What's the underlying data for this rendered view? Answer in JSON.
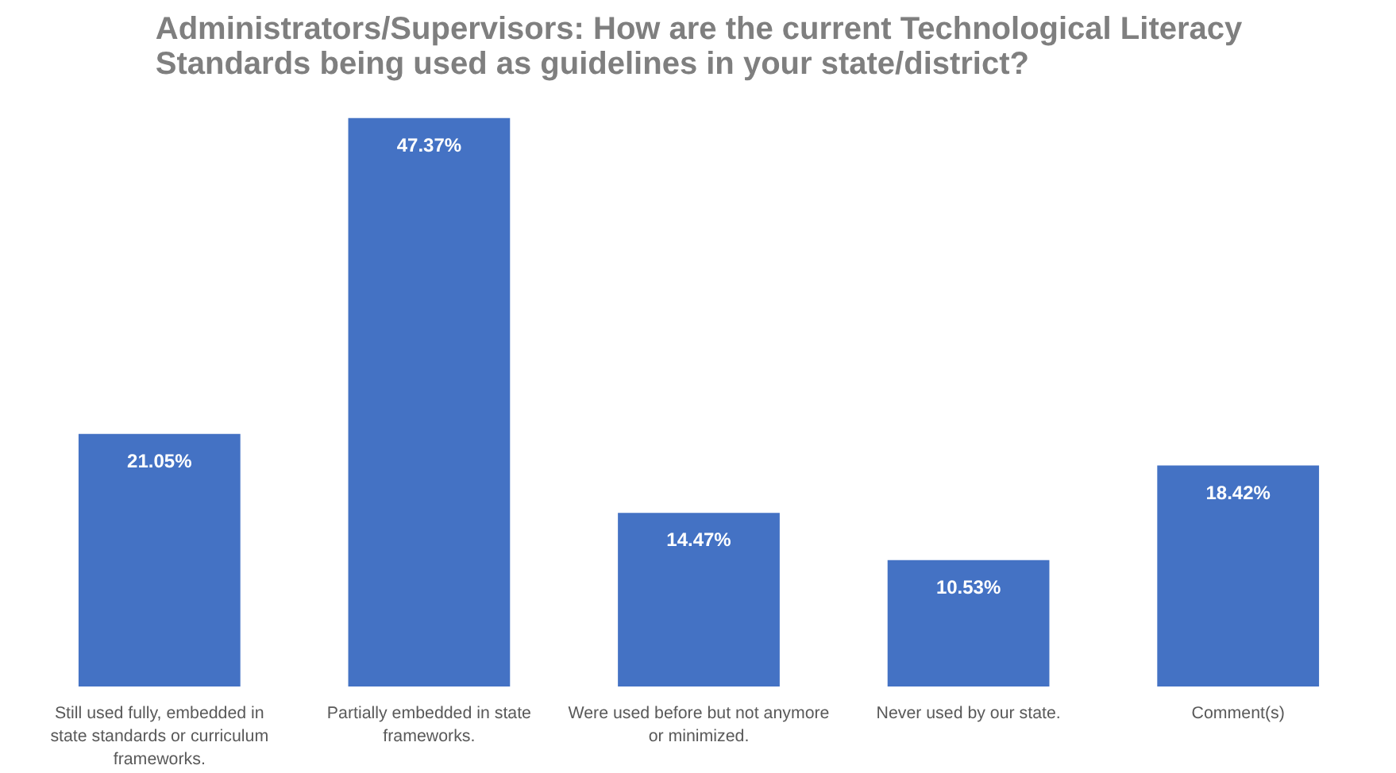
{
  "chart_data": {
    "type": "bar",
    "title": "Administrators/Supervisors: How are the current Technological Literacy Standards being used as guidelines in your state/district?",
    "categories": [
      "Still used fully, embedded in state standards or curriculum frameworks.",
      "Partially embedded in state frameworks.",
      "Were used before but not anymore or minimized.",
      "Never used by our state.",
      "Comment(s)"
    ],
    "values": [
      21.05,
      47.37,
      14.47,
      10.53,
      18.42
    ],
    "value_labels": [
      "21.05%",
      "47.37%",
      "14.47%",
      "10.53%",
      "18.42%"
    ],
    "color": "#4472c4",
    "grid": false
  }
}
